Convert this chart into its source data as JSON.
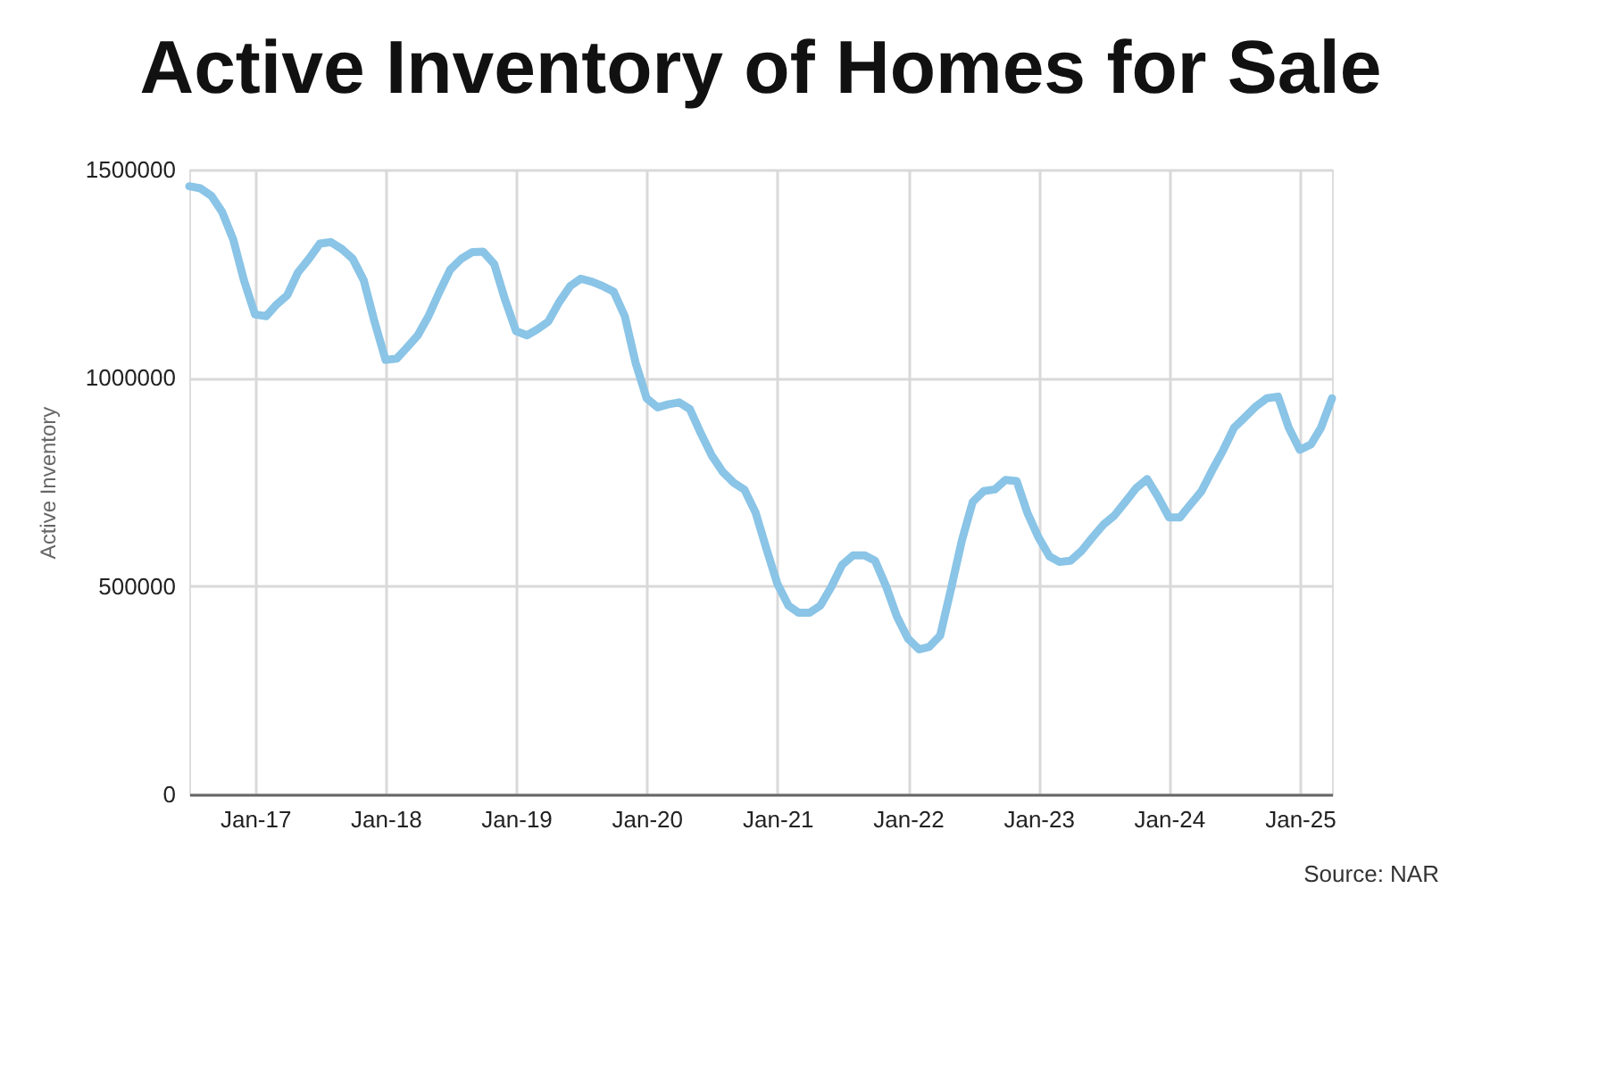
{
  "chart_data": {
    "type": "line",
    "title": "Active Inventory of Homes for Sale",
    "ylabel": "Active Inventory",
    "x": [
      "2016-07",
      "2016-08",
      "2016-09",
      "2016-10",
      "2016-11",
      "2016-12",
      "2017-01",
      "2017-02",
      "2017-03",
      "2017-04",
      "2017-05",
      "2017-06",
      "2017-07",
      "2017-08",
      "2017-09",
      "2017-10",
      "2017-11",
      "2017-12",
      "2018-01",
      "2018-02",
      "2018-03",
      "2018-04",
      "2018-05",
      "2018-06",
      "2018-07",
      "2018-08",
      "2018-09",
      "2018-10",
      "2018-11",
      "2018-12",
      "2019-01",
      "2019-02",
      "2019-03",
      "2019-04",
      "2019-05",
      "2019-06",
      "2019-07",
      "2019-08",
      "2019-09",
      "2019-10",
      "2019-11",
      "2019-12",
      "2020-01",
      "2020-02",
      "2020-03",
      "2020-04",
      "2020-05",
      "2020-06",
      "2020-07",
      "2020-08",
      "2020-09",
      "2020-10",
      "2020-11",
      "2020-12",
      "2021-01",
      "2021-02",
      "2021-03",
      "2021-04",
      "2021-05",
      "2021-06",
      "2021-07",
      "2021-08",
      "2021-09",
      "2021-10",
      "2021-11",
      "2021-12",
      "2022-01",
      "2022-02",
      "2022-03",
      "2022-04",
      "2022-05",
      "2022-06",
      "2022-07",
      "2022-08",
      "2022-09",
      "2022-10",
      "2022-11",
      "2022-12",
      "2023-01",
      "2023-02",
      "2023-03",
      "2023-04",
      "2023-05",
      "2023-06",
      "2023-07",
      "2023-08",
      "2023-09",
      "2023-10",
      "2023-11",
      "2023-12",
      "2024-01",
      "2024-02",
      "2024-03",
      "2024-04",
      "2024-05",
      "2024-06",
      "2024-07",
      "2024-08",
      "2024-09",
      "2024-10",
      "2024-11",
      "2024-12",
      "2025-01",
      "2025-02",
      "2025-03",
      "2025-04"
    ],
    "series": [
      {
        "color": "#8ac4e6",
        "values": [
          1460000,
          1455000,
          1437000,
          1398000,
          1332000,
          1234000,
          1152000,
          1148000,
          1175000,
          1198000,
          1253000,
          1286000,
          1322000,
          1326000,
          1309000,
          1286000,
          1234000,
          1135000,
          1043000,
          1046000,
          1072000,
          1102000,
          1148000,
          1207000,
          1260000,
          1286000,
          1302000,
          1303000,
          1273000,
          1188000,
          1112000,
          1102000,
          1116000,
          1135000,
          1181000,
          1220000,
          1238000,
          1231000,
          1220000,
          1207000,
          1148000,
          1037000,
          951000,
          929000,
          936000,
          941000,
          925000,
          866000,
          814000,
          774000,
          748000,
          731000,
          676000,
          590000,
          505000,
          453000,
          436000,
          436000,
          453000,
          499000,
          551000,
          574000,
          574000,
          561000,
          499000,
          427000,
          374000,
          348000,
          354000,
          381000,
          492000,
          610000,
          702000,
          728000,
          732000,
          755000,
          752000,
          676000,
          617000,
          571000,
          558000,
          561000,
          584000,
          617000,
          647000,
          669000,
          702000,
          735000,
          757000,
          715000,
          665000,
          665000,
          696000,
          728000,
          778000,
          827000,
          880000,
          906000,
          932000,
          951000,
          955000,
          880000,
          827000,
          840000,
          880000,
          951000
        ]
      }
    ],
    "xlim": [
      "2016-07",
      "2025-04"
    ],
    "xticks": [
      {
        "value": "2017-01",
        "label": "Jan-17"
      },
      {
        "value": "2018-01",
        "label": "Jan-18"
      },
      {
        "value": "2019-01",
        "label": "Jan-19"
      },
      {
        "value": "2020-01",
        "label": "Jan-20"
      },
      {
        "value": "2021-01",
        "label": "Jan-21"
      },
      {
        "value": "2022-01",
        "label": "Jan-22"
      },
      {
        "value": "2023-01",
        "label": "Jan-23"
      },
      {
        "value": "2024-01",
        "label": "Jan-24"
      },
      {
        "value": "2025-01",
        "label": "Jan-25"
      }
    ],
    "ylim": [
      0,
      1500000
    ],
    "yticks": [
      0,
      500000,
      1000000,
      1500000
    ],
    "grid": true,
    "marker": "none",
    "line_style": "solid",
    "annotations": [
      "Source: NAR"
    ]
  }
}
